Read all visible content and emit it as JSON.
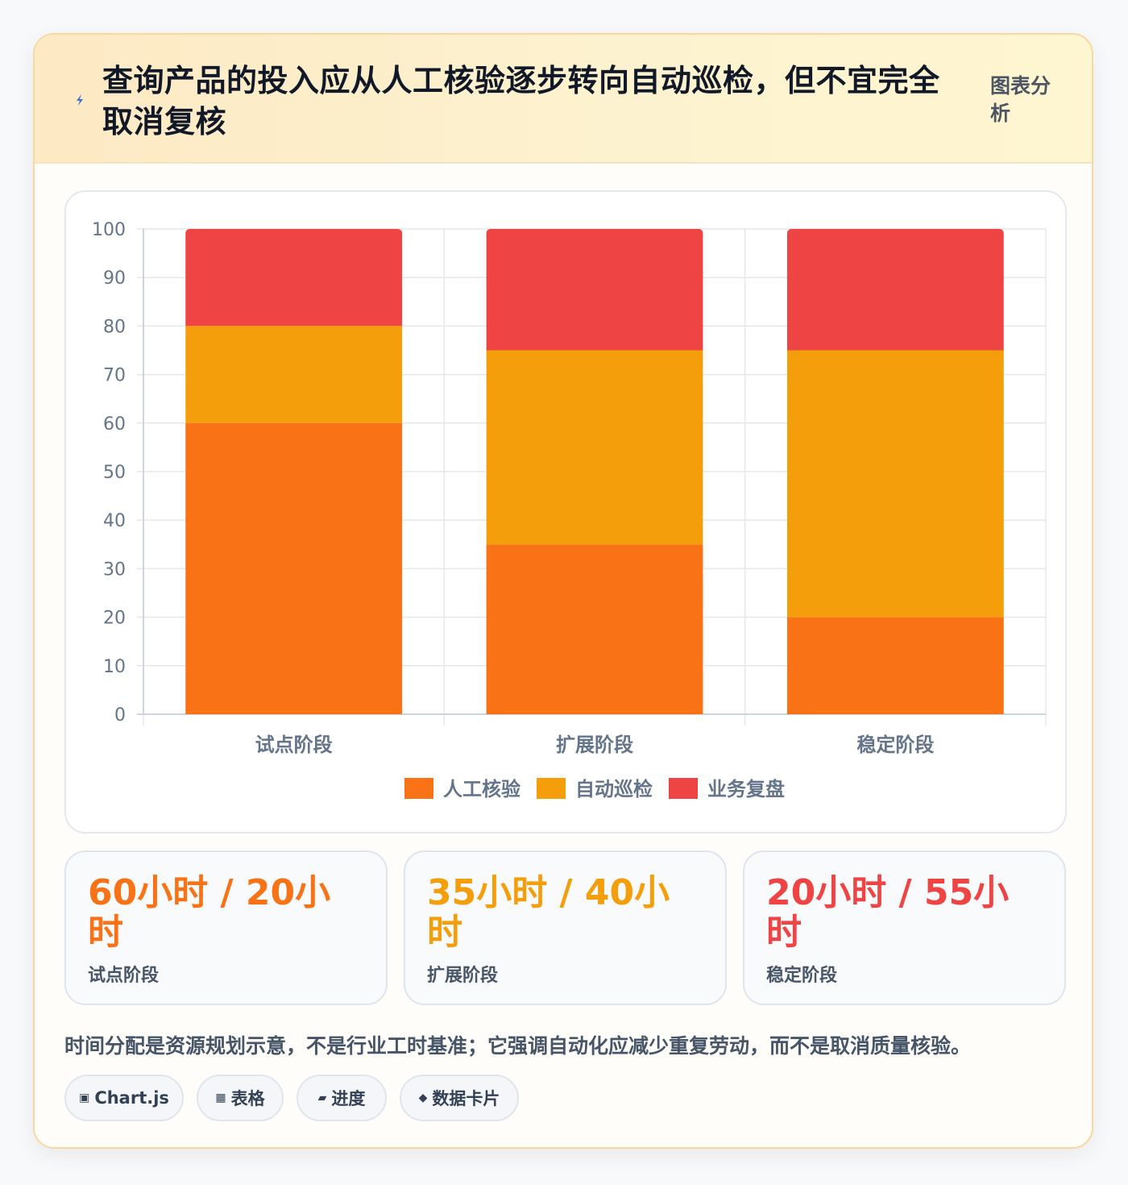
{
  "header": {
    "title": "查询产品的投入应从人工核验逐步转向自动巡检，但不宜完全取消复核",
    "tag": "图表分析",
    "icon": "lightning-icon"
  },
  "chart_data": {
    "type": "bar",
    "stacked": true,
    "categories": [
      "试点阶段",
      "扩展阶段",
      "稳定阶段"
    ],
    "series": [
      {
        "name": "人工核验",
        "values": [
          60,
          35,
          20
        ],
        "color": "#f97316"
      },
      {
        "name": "自动巡检",
        "values": [
          20,
          40,
          55
        ],
        "color": "#f59e0b"
      },
      {
        "name": "业务复盘",
        "values": [
          20,
          25,
          25
        ],
        "color": "#ef4444"
      }
    ],
    "ylim": [
      0,
      100
    ],
    "yticks": [
      0,
      10,
      20,
      30,
      40,
      50,
      60,
      70,
      80,
      90,
      100
    ],
    "grid": true,
    "legend_position": "bottom"
  },
  "stats": [
    {
      "value": "60小时 / 20小时",
      "label": "试点阶段",
      "color": "#f97316"
    },
    {
      "value": "35小时 / 40小时",
      "label": "扩展阶段",
      "color": "#f59e0b"
    },
    {
      "value": "20小时 / 55小时",
      "label": "稳定阶段",
      "color": "#ef4444"
    }
  ],
  "note": "时间分配是资源规划示意，不是行业工时基准；它强调自动化应减少重复劳动，而不是取消质量核验。",
  "chips": [
    {
      "icon": "▣",
      "label": "Chart.js"
    },
    {
      "icon": "▦",
      "label": "表格"
    },
    {
      "icon": "▰",
      "label": "进度"
    },
    {
      "icon": "◆",
      "label": "数据卡片"
    }
  ]
}
